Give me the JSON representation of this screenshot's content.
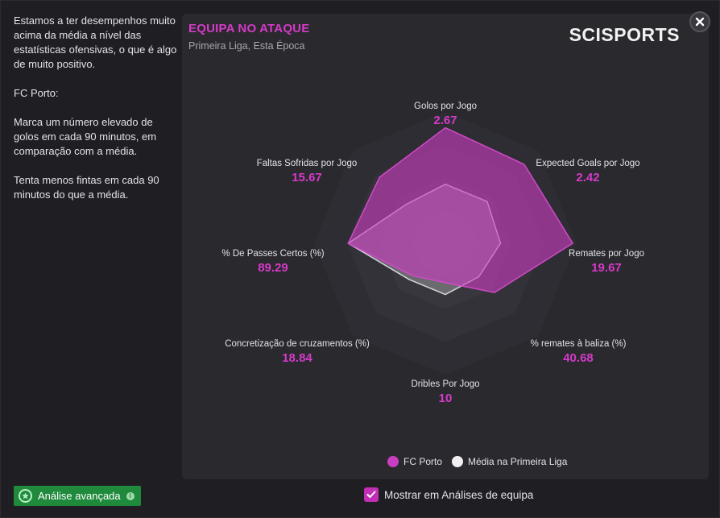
{
  "left_panel": {
    "paragraphs": [
      "Estamos a ter desempenhos muito acima da média a nível das estatísticas ofensivas, o que é algo de muito positivo.",
      "FC Porto:",
      "Marca um número elevado de golos em cada 90 minutos, em comparação com a média.",
      "Tenta menos fintas em cada 90 minutos do que a média."
    ]
  },
  "panel": {
    "title": "EQUIPA NO ATAQUE",
    "subtitle": "Primeira Liga, Esta Época",
    "brand": "SCISPORTS"
  },
  "colors": {
    "team": "#c93ec0",
    "league": "#d8d6da",
    "accent_text": "#d53ac8",
    "green_button": "#1f8a3c"
  },
  "chart_data": {
    "type": "radar",
    "axes": [
      {
        "label": "Golos por Jogo",
        "value": "2.67",
        "team_level": 0.88,
        "league_level": 0.45
      },
      {
        "label": "Expected Goals por Jogo",
        "value": "2.42",
        "team_level": 0.85,
        "league_level": 0.45
      },
      {
        "label": "Remates por Jogo",
        "value": "19.67",
        "team_level": 0.97,
        "league_level": 0.42
      },
      {
        "label": "% remates à baliza (%)",
        "value": "40.68",
        "team_level": 0.53,
        "league_level": 0.36
      },
      {
        "label": "Dribles Por Jogo",
        "value": "10",
        "team_level": 0.3,
        "league_level": 0.39
      },
      {
        "label": "Concretização de cruzamentos (%)",
        "value": "18.84",
        "team_level": 0.35,
        "league_level": 0.39
      },
      {
        "label": "% De Passes Certos (%)",
        "value": "89.29",
        "team_level": 0.74,
        "league_level": 0.74
      },
      {
        "label": "Faltas Sofridas por Jogo",
        "value": "15.67",
        "team_level": 0.71,
        "league_level": 0.42
      }
    ],
    "rings": 4,
    "series": [
      {
        "name": "FC Porto",
        "color": "#c93ec0"
      },
      {
        "name": "Média na Primeira Liga",
        "color": "#d8d6da"
      }
    ]
  },
  "legend": {
    "team": "FC Porto",
    "league": "Média na Primeira Liga"
  },
  "footer": {
    "advanced_label": "Análise avançada",
    "checkbox_label": "Mostrar em Análises de equipa",
    "checkbox_checked": true
  }
}
